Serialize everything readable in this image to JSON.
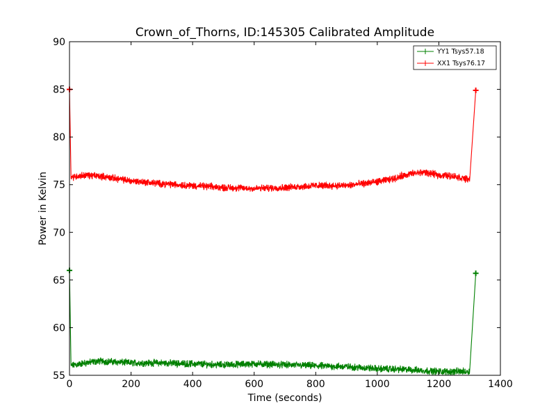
{
  "chart_data": {
    "type": "line",
    "title": "Crown_of_Thorns, ID:145305 Calibrated Amplitude",
    "xlabel": "Time (seconds)",
    "ylabel": "Power in Kelvin",
    "xlim": [
      0,
      1400
    ],
    "ylim": [
      55,
      90
    ],
    "xticks": [
      0,
      200,
      400,
      600,
      800,
      1000,
      1200,
      1400
    ],
    "yticks": [
      55,
      60,
      65,
      70,
      75,
      80,
      85,
      90
    ],
    "legend_position": "top-right",
    "series": [
      {
        "name": "YY1 Tsys57.18",
        "color": "#008000",
        "x": [
          0,
          5,
          50,
          100,
          200,
          300,
          400,
          500,
          600,
          700,
          800,
          900,
          1000,
          1100,
          1200,
          1250,
          1300,
          1320
        ],
        "y": [
          66.0,
          56.0,
          56.3,
          56.5,
          56.3,
          56.3,
          56.2,
          56.1,
          56.2,
          56.1,
          56.0,
          55.9,
          55.7,
          55.6,
          55.4,
          55.4,
          55.4,
          65.7
        ]
      },
      {
        "name": "XX1 Tsys76.17",
        "color": "#ff0000",
        "x": [
          0,
          5,
          50,
          100,
          200,
          300,
          400,
          500,
          600,
          700,
          800,
          900,
          1000,
          1050,
          1100,
          1150,
          1200,
          1250,
          1300,
          1320
        ],
        "y": [
          85.0,
          75.8,
          76.0,
          75.9,
          75.4,
          75.1,
          74.9,
          74.7,
          74.6,
          74.7,
          74.9,
          74.9,
          75.3,
          75.6,
          76.1,
          76.3,
          76.0,
          75.9,
          75.5,
          84.9
        ]
      }
    ]
  }
}
